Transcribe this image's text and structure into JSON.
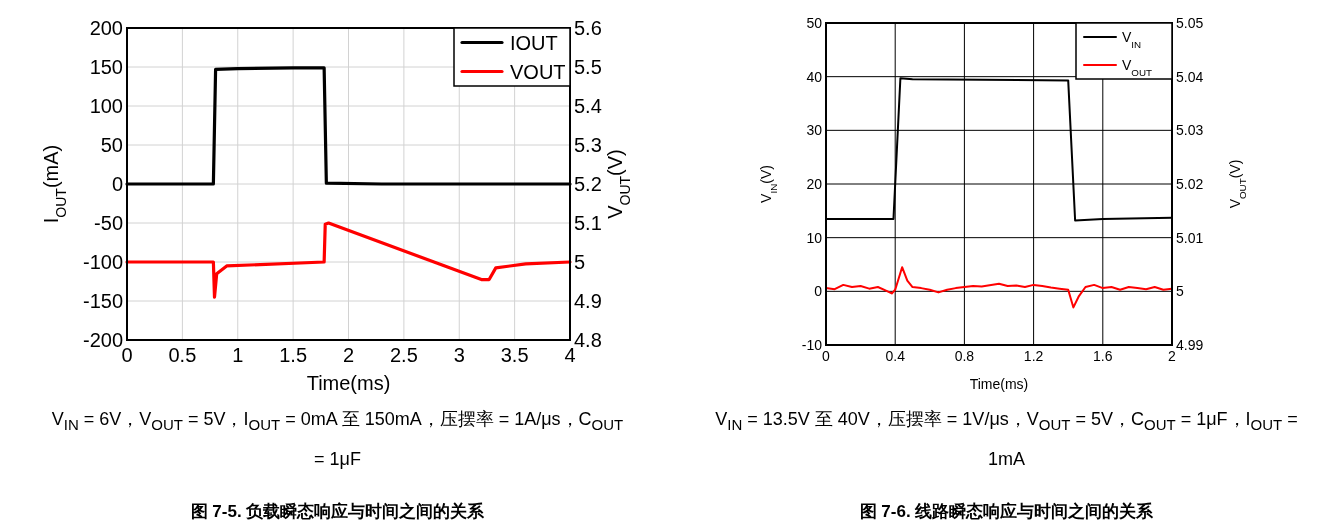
{
  "chart_data": [
    {
      "type": "line",
      "title": "图 7-5. 负载瞬态响应与时间之间的关系",
      "subtitle": "V$_{IN}$ = 6V，V$_{OUT}$ = 5V，I$_{OUT}$ = 0mA 至 150mA，压摆率 = 1A/μs，C$_{OUT}$ = 1μF",
      "xlabel": "Time(ms)",
      "ylabel": "I$_{OUT}$(mA)",
      "y2label": "V$_{OUT}$(V)",
      "xlim": [
        0,
        4
      ],
      "ylim": [
        -200,
        200
      ],
      "y2lim": [
        4.8,
        5.6
      ],
      "xticks": [
        0,
        0.5,
        1,
        1.5,
        2,
        2.5,
        3,
        3.5,
        4
      ],
      "yticks": [
        -200,
        -150,
        -100,
        -50,
        0,
        50,
        100,
        150,
        200
      ],
      "y2ticks": [
        4.8,
        4.9,
        5,
        5.1,
        5.2,
        5.3,
        5.4,
        5.5,
        5.6
      ],
      "grid": true,
      "legend": "top right",
      "series": [
        {
          "name": "IOUT",
          "color": "#000000",
          "x": [
            0,
            0.78,
            0.8,
            1.0,
            1.5,
            1.78,
            1.8,
            2.3,
            4
          ],
          "values": [
            0,
            0,
            147,
            148,
            149,
            149,
            1,
            0,
            0
          ]
        },
        {
          "name": "VOUT",
          "color": "#ff0000",
          "axis": "y2",
          "x": [
            0,
            0.78,
            0.79,
            0.81,
            0.9,
            1.78,
            1.79,
            1.82,
            3.2,
            3.27,
            3.33,
            3.6,
            4
          ],
          "values": [
            5.0,
            5.0,
            4.91,
            4.97,
            4.99,
            5.0,
            5.097,
            5.1,
            4.955,
            4.955,
            4.985,
            4.995,
            5.0
          ]
        }
      ]
    },
    {
      "type": "line",
      "title": "图 7-6. 线路瞬态响应与时间之间的关系",
      "subtitle": "V$_{IN}$ = 13.5V 至 40V，压摆率 = 1V/μs，V$_{OUT}$ = 5V，C$_{OUT}$ = 1μF，I$_{OUT}$ = 1mA",
      "xlabel": "Time(ms)",
      "ylabel": "V$_{IN}$(V)",
      "y2label": "V$_{OUT}$(V)",
      "xlim": [
        0,
        2
      ],
      "ylim": [
        -10,
        50
      ],
      "y2lim": [
        4.99,
        5.05
      ],
      "xticks": [
        0,
        0.4,
        0.8,
        1.2,
        1.6,
        2
      ],
      "yticks": [
        -10,
        0,
        10,
        20,
        30,
        40,
        50
      ],
      "y2ticks": [
        4.99,
        5,
        5.01,
        5.02,
        5.03,
        5.04,
        5.05
      ],
      "grid": true,
      "legend": "top right",
      "series": [
        {
          "name": "V$_{IN}$",
          "color": "#000000",
          "x": [
            0,
            0.39,
            0.43,
            0.5,
            1.4,
            1.44,
            1.6,
            2
          ],
          "values": [
            13.5,
            13.5,
            39.7,
            39.5,
            39.3,
            13.2,
            13.5,
            13.7
          ]
        },
        {
          "name": "V$_{OUT}$",
          "color": "#ff0000",
          "axis": "y2",
          "x": [
            0,
            0.05,
            0.1,
            0.15,
            0.2,
            0.25,
            0.3,
            0.35,
            0.38,
            0.4,
            0.44,
            0.47,
            0.5,
            0.55,
            0.6,
            0.65,
            0.7,
            0.75,
            0.8,
            0.85,
            0.9,
            1.0,
            1.05,
            1.1,
            1.15,
            1.2,
            1.25,
            1.3,
            1.35,
            1.4,
            1.43,
            1.46,
            1.5,
            1.55,
            1.6,
            1.65,
            1.7,
            1.75,
            1.8,
            1.85,
            1.9,
            1.95,
            2.0
          ],
          "values": [
            5.0006,
            5.0004,
            5.0012,
            5.0008,
            5.001,
            5.0005,
            5.0008,
            5.0001,
            4.9996,
            5.0003,
            5.0045,
            5.002,
            5.0008,
            5.0006,
            5.0003,
            4.9998,
            5.0003,
            5.0006,
            5.0008,
            5.001,
            5.0009,
            5.0014,
            5.001,
            5.0011,
            5.0008,
            5.0012,
            5.001,
            5.0007,
            5.0005,
            5.0003,
            4.997,
            4.999,
            5.0008,
            5.0012,
            5.0006,
            5.0008,
            5.0003,
            5.0008,
            5.0006,
            5.0004,
            5.0008,
            5.0003,
            5.0005
          ]
        }
      ]
    }
  ]
}
